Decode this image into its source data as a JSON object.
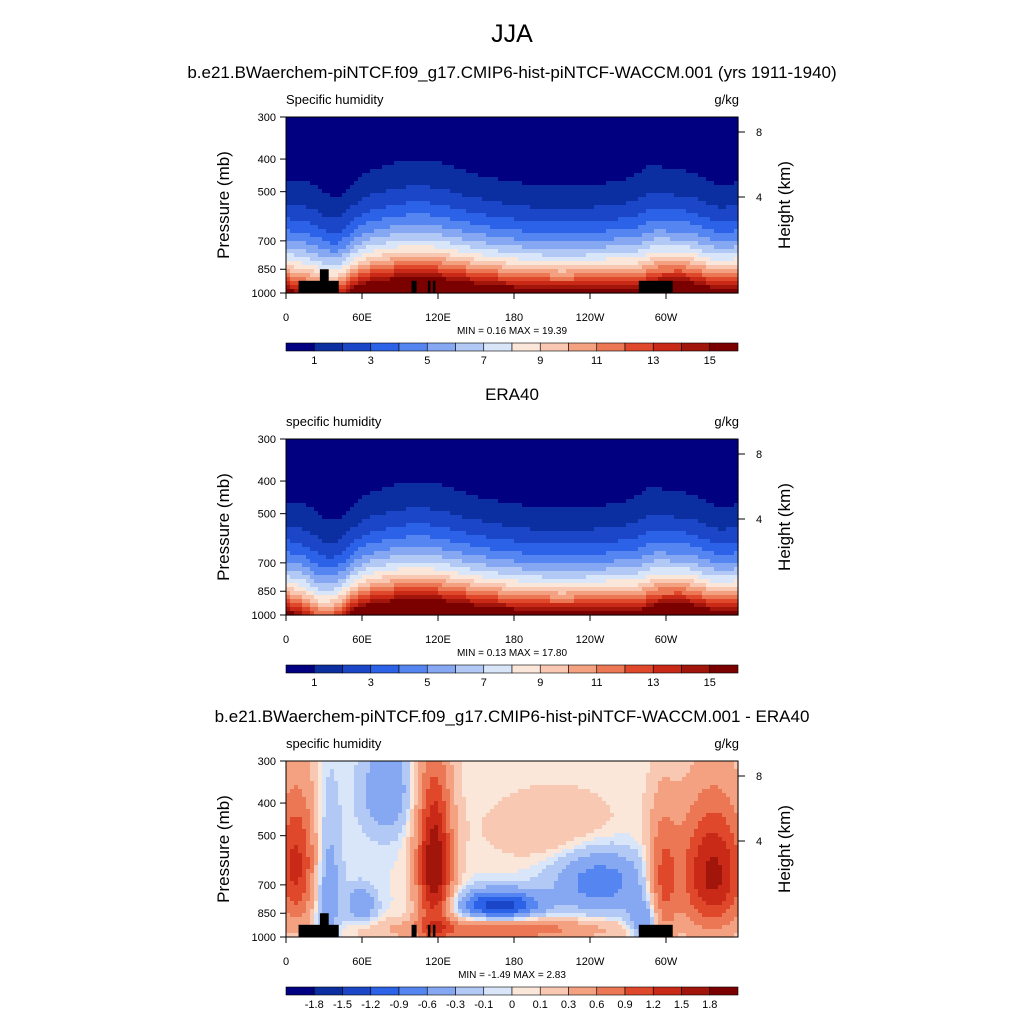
{
  "figure": {
    "title": "JJA"
  },
  "colors": {
    "seq_palette": [
      "#000080",
      "#0b2fa0",
      "#1c46c8",
      "#2c62e8",
      "#5585f0",
      "#86a8f2",
      "#b3c9f5",
      "#d9e6fa",
      "#fbe6da",
      "#f9c8b2",
      "#f3a181",
      "#eb7754",
      "#e0482b",
      "#c82a17",
      "#a2150b",
      "#7b0000"
    ],
    "div_palette": [
      "#000080",
      "#0b2fa0",
      "#1c46c8",
      "#2c62e8",
      "#5585f0",
      "#86a8f2",
      "#b3c9f5",
      "#d9e6fa",
      "#fbe6da",
      "#f9c8b2",
      "#f3a181",
      "#eb7754",
      "#e0482b",
      "#c82a17",
      "#a2150b",
      "#7b0000"
    ],
    "terrain": "#000000"
  },
  "chart_data": [
    {
      "type": "heatmap",
      "title": "b.e21.BWaerchem-piNTCF.f09_g17.CMIP6-hist-piNTCF-WACCM.001 (yrs 1911-1940)",
      "left_label": "Specific humidity",
      "units": "g/kg",
      "ylabel": "Pressure (mb)",
      "y2label": "Height (km)",
      "xticks": [
        "0",
        "60E",
        "120E",
        "180",
        "120W",
        "60W"
      ],
      "yticks": [
        "300",
        "400",
        "500",
        "700",
        "850",
        "1000"
      ],
      "y2ticks": [
        "8",
        "4"
      ],
      "stats": "MIN =   0.16  MAX =  19.39",
      "colorbar_labels": [
        "1",
        "3",
        "5",
        "7",
        "9",
        "11",
        "13",
        "15"
      ],
      "levels": [
        0,
        1,
        2,
        3,
        4,
        5,
        6,
        7,
        8,
        9,
        10,
        11,
        12,
        13,
        14,
        15
      ],
      "x_range_lon": [
        0,
        360
      ],
      "y_range_mb": [
        300,
        1000
      ],
      "terrain": true
    },
    {
      "type": "heatmap",
      "title": "ERA40",
      "left_label": "specific humidity",
      "units": "g/kg",
      "ylabel": "Pressure (mb)",
      "y2label": "Height (km)",
      "xticks": [
        "0",
        "60E",
        "120E",
        "180",
        "120W",
        "60W"
      ],
      "yticks": [
        "300",
        "400",
        "500",
        "700",
        "850",
        "1000"
      ],
      "y2ticks": [
        "8",
        "4"
      ],
      "stats": "MIN =   0.13  MAX =  17.80",
      "colorbar_labels": [
        "1",
        "3",
        "5",
        "7",
        "9",
        "11",
        "13",
        "15"
      ],
      "levels": [
        0,
        1,
        2,
        3,
        4,
        5,
        6,
        7,
        8,
        9,
        10,
        11,
        12,
        13,
        14,
        15
      ],
      "x_range_lon": [
        0,
        360
      ],
      "y_range_mb": [
        300,
        1000
      ],
      "terrain": false
    },
    {
      "type": "heatmap",
      "title": "b.e21.BWaerchem-piNTCF.f09_g17.CMIP6-hist-piNTCF-WACCM.001 - ERA40",
      "left_label": "specific humidity",
      "units": "g/kg",
      "ylabel": "Pressure (mb)",
      "y2label": "Height (km)",
      "xticks": [
        "0",
        "60E",
        "120E",
        "180",
        "120W",
        "60W"
      ],
      "yticks": [
        "300",
        "400",
        "500",
        "700",
        "850",
        "1000"
      ],
      "y2ticks": [
        "8",
        "4"
      ],
      "stats": "MIN =  -1.49  MAX =   2.83",
      "colorbar_labels": [
        "-1.8",
        "-1.5",
        "-1.2",
        "-0.9",
        "-0.6",
        "-0.3",
        "-0.1",
        "0",
        "0.1",
        "0.3",
        "0.6",
        "0.9",
        "1.2",
        "1.5",
        "1.8"
      ],
      "levels": [
        -1.8,
        -1.5,
        -1.2,
        -0.9,
        -0.6,
        -0.3,
        -0.1,
        0,
        0.1,
        0.3,
        0.6,
        0.9,
        1.2,
        1.5,
        1.8
      ],
      "x_range_lon": [
        0,
        360
      ],
      "y_range_mb": [
        300,
        1000
      ],
      "terrain": true
    }
  ]
}
